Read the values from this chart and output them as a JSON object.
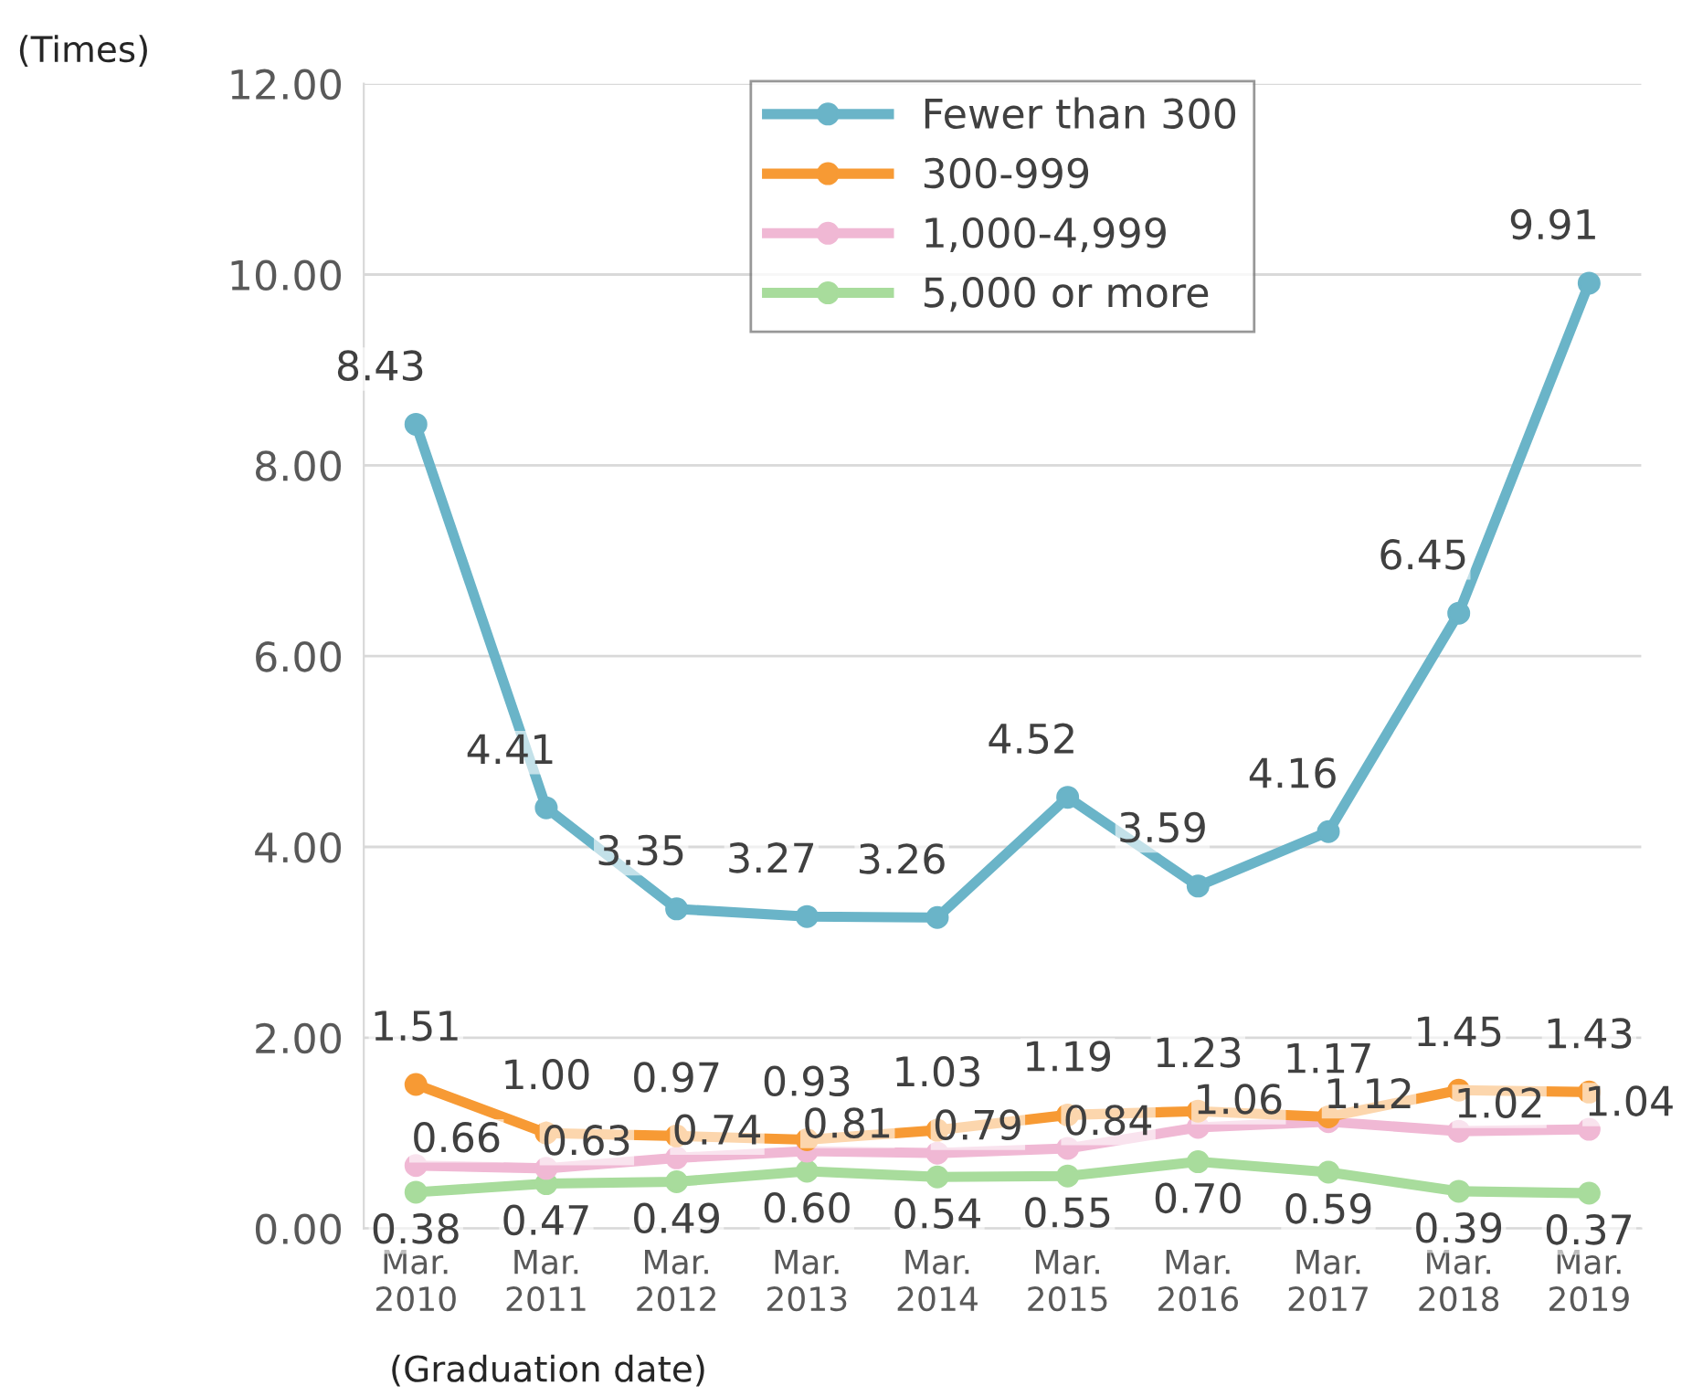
{
  "chart_data": {
    "type": "line",
    "ylabel": "(Times)",
    "xlabel": "(Graduation date)",
    "categories": [
      "Mar.\n2010",
      "Mar.\n2011",
      "Mar.\n2012",
      "Mar.\n2013",
      "Mar.\n2014",
      "Mar.\n2015",
      "Mar.\n2016",
      "Mar.\n2017",
      "Mar.\n2018",
      "Mar.\n2019"
    ],
    "series": [
      {
        "name": "Fewer than 300",
        "color": "#6ab4c8",
        "values": [
          8.43,
          4.41,
          3.35,
          3.27,
          3.26,
          4.52,
          3.59,
          4.16,
          6.45,
          9.91
        ],
        "value_labels": [
          "8.43",
          "4.41",
          "3.35",
          "3.27",
          "3.26",
          "4.52",
          "3.59",
          "4.16",
          "6.45",
          "9.91"
        ]
      },
      {
        "name": "300-999",
        "color": "#f79a34",
        "values": [
          1.51,
          1.0,
          0.97,
          0.93,
          1.03,
          1.19,
          1.23,
          1.17,
          1.45,
          1.43
        ],
        "value_labels": [
          "1.51",
          "1.00",
          "0.97",
          "0.93",
          "1.03",
          "1.19",
          "1.23",
          "1.17",
          "1.45",
          "1.43"
        ]
      },
      {
        "name": "1,000-4,999",
        "color": "#f0b8d4",
        "values": [
          0.66,
          0.63,
          0.74,
          0.81,
          0.79,
          0.84,
          1.06,
          1.12,
          1.02,
          1.04
        ],
        "value_labels": [
          "0.66",
          "0.63",
          "0.74",
          "0.81",
          "0.79",
          "0.84",
          "1.06",
          "1.12",
          "1.02",
          "1.04"
        ]
      },
      {
        "name": "5,000 or more",
        "color": "#a8dc9c",
        "values": [
          0.38,
          0.47,
          0.49,
          0.6,
          0.54,
          0.55,
          0.7,
          0.59,
          0.39,
          0.37
        ],
        "value_labels": [
          "0.38",
          "0.47",
          "0.49",
          "0.60",
          "0.54",
          "0.55",
          "0.70",
          "0.59",
          "0.39",
          "0.37"
        ]
      }
    ],
    "ylim": [
      0,
      12
    ],
    "yticks": [
      {
        "value": 0,
        "label": "0.00"
      },
      {
        "value": 2,
        "label": "2.00"
      },
      {
        "value": 4,
        "label": "4.00"
      },
      {
        "value": 6,
        "label": "6.00"
      },
      {
        "value": 8,
        "label": "8.00"
      },
      {
        "value": 10,
        "label": "10.00"
      },
      {
        "value": 12,
        "label": "12.00"
      }
    ],
    "grid": "y",
    "legend": "top",
    "marker": "circle",
    "line_style": "solid"
  }
}
